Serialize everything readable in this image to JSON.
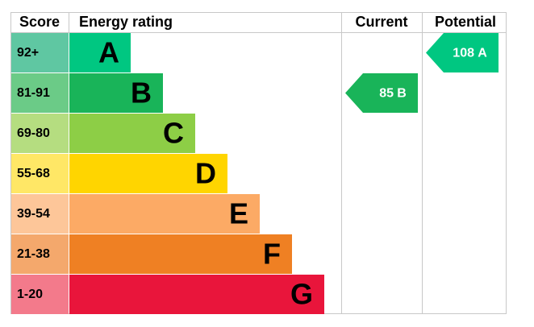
{
  "header": {
    "score": "Score",
    "rating": "Energy rating",
    "current": "Current",
    "potential": "Potential"
  },
  "rows": [
    {
      "score": "92+",
      "letter": "A",
      "cell_color": "#5fc7a2",
      "bar_color": "#00c781"
    },
    {
      "score": "81-91",
      "letter": "B",
      "cell_color": "#6bcb87",
      "bar_color": "#19b459"
    },
    {
      "score": "69-80",
      "letter": "C",
      "cell_color": "#b5dd80",
      "bar_color": "#8dce46"
    },
    {
      "score": "55-68",
      "letter": "D",
      "cell_color": "#ffe766",
      "bar_color": "#ffd500"
    },
    {
      "score": "39-54",
      "letter": "E",
      "cell_color": "#fdc699",
      "bar_color": "#fcaa65"
    },
    {
      "score": "21-38",
      "letter": "F",
      "cell_color": "#f4a86c",
      "bar_color": "#ef8023"
    },
    {
      "score": "1-20",
      "letter": "G",
      "cell_color": "#f37a8b",
      "bar_color": "#e9153b"
    }
  ],
  "current": {
    "score": 85,
    "letter": "B"
  },
  "potential": {
    "score": 108,
    "letter": "A"
  }
}
